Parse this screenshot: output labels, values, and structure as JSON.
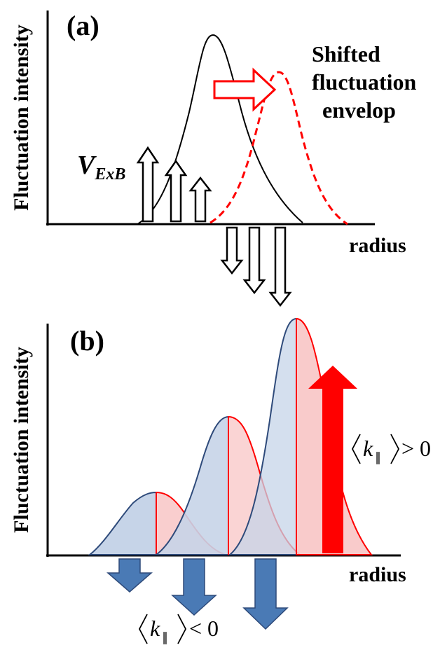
{
  "panel_a": {
    "label": "(a)",
    "ylabel": "Fluctuation intensity",
    "xlabel": "radius",
    "shifted_label": [
      "Shifted",
      "fluctuation",
      "envelop"
    ],
    "velocity_label": "V",
    "velocity_subscript": "ExB"
  },
  "panel_b": {
    "label": "(b)",
    "ylabel": "Fluctuation intensity",
    "xlabel": "radius",
    "kpar_positive": "> 0",
    "kpar_negative": "< 0",
    "kpar_symbol": "k",
    "kpar_subscript": "∥"
  },
  "colors": {
    "black": "#000000",
    "red": "#ff0000",
    "blue_fill": "#c6d4e8",
    "blue_stroke": "#2e4a7a",
    "blue_arrow": "#4a7ab5",
    "pink_fill": "#f8c5c5"
  }
}
